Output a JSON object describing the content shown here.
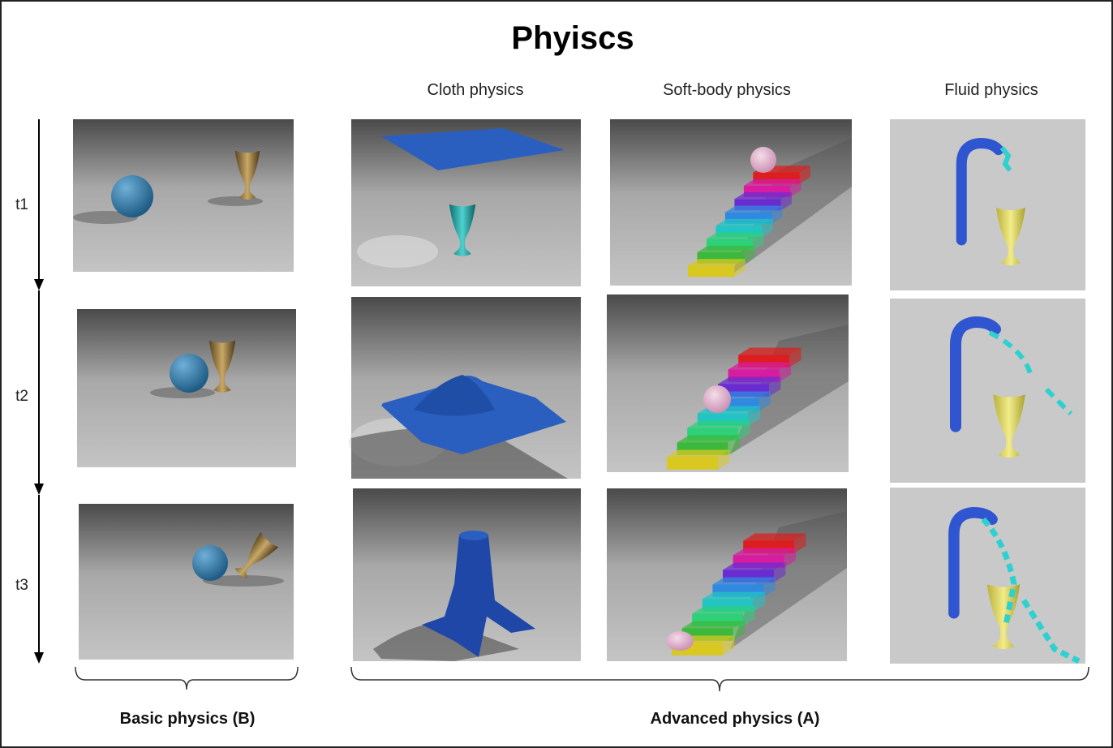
{
  "title": "Phyiscs",
  "columns": [
    "Cloth physics",
    "Soft-body physics",
    "Fluid physics"
  ],
  "rows": [
    "t1",
    "t2",
    "t3"
  ],
  "groups": [
    "Basic physics (B)",
    "Advanced physics (A)"
  ]
}
